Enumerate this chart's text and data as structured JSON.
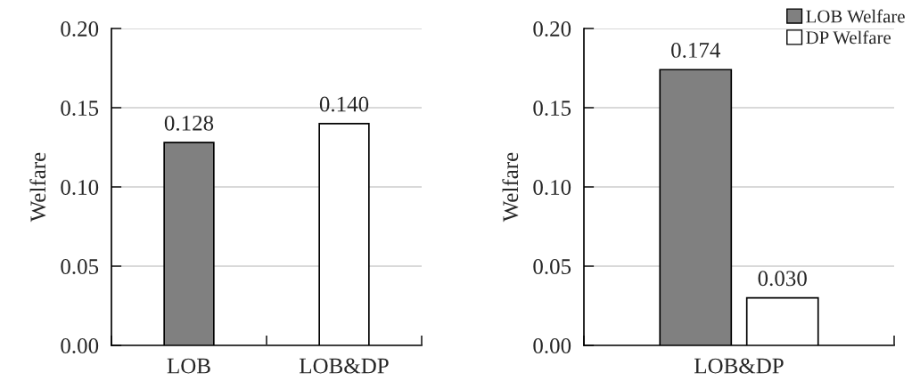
{
  "chart_data": [
    {
      "type": "bar",
      "ylabel": "Welfare",
      "categories": [
        "LOB",
        "LOB&DP"
      ],
      "values": [
        0.128,
        0.14
      ],
      "colors": [
        "#808080",
        "#ffffff"
      ],
      "value_labels": [
        "0.128",
        "0.140"
      ],
      "ylim": [
        0,
        0.2
      ],
      "yticks": [
        {
          "value": 0,
          "label": "0.00"
        },
        {
          "value": 0.05,
          "label": "0.05"
        },
        {
          "value": 0.1,
          "label": "0.10"
        },
        {
          "value": 0.15,
          "label": "0.15"
        },
        {
          "value": 0.2,
          "label": "0.20"
        }
      ],
      "grid": "y",
      "legend": false
    },
    {
      "type": "bar",
      "ylabel": "Welfare",
      "categories": [
        "LOB&DP"
      ],
      "series": [
        {
          "name": "LOB Welfare",
          "color": "#808080",
          "values": [
            0.174
          ],
          "value_labels": [
            "0.174"
          ]
        },
        {
          "name": "DP Welfare",
          "color": "#ffffff",
          "values": [
            0.03
          ],
          "value_labels": [
            "0.030"
          ]
        }
      ],
      "ylim": [
        0,
        0.2
      ],
      "yticks": [
        {
          "value": 0,
          "label": "0.00"
        },
        {
          "value": 0.05,
          "label": "0.05"
        },
        {
          "value": 0.1,
          "label": "0.10"
        },
        {
          "value": 0.15,
          "label": "0.15"
        },
        {
          "value": 0.2,
          "label": "0.20"
        }
      ],
      "grid": "y",
      "legend": "top right"
    }
  ]
}
